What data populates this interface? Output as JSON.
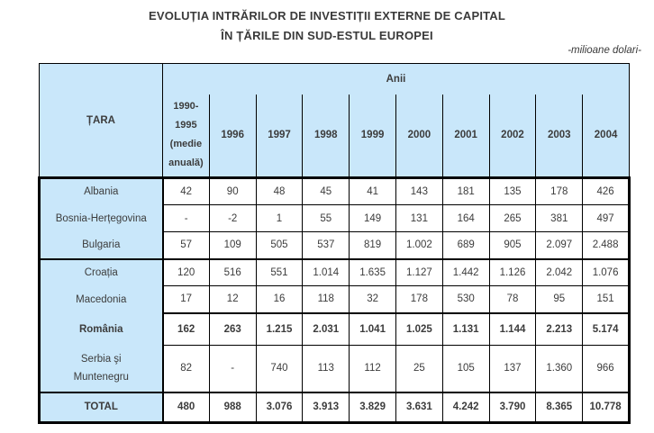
{
  "title": {
    "line1": "EVOLUȚIA INTRĂRILOR DE INVESTIȚII EXTERNE DE CAPITAL",
    "line2": "ÎN ȚĂRILE DIN SUD-ESTUL EUROPEI",
    "unit_note": "-milioane dolari-"
  },
  "colors": {
    "header_bg": "#c9e7fa",
    "border": "#000000",
    "text": "#3c3c3c"
  },
  "table": {
    "country_header": "ȚARA",
    "years_group_header": "Anii",
    "columns": [
      "1990-\n1995\n(medie\nanuală)",
      "1996",
      "1997",
      "1998",
      "1999",
      "2000",
      "2001",
      "2002",
      "2003",
      "2004"
    ],
    "rows": [
      {
        "country": "Albania",
        "bold": false,
        "separator_top": "none",
        "total": false,
        "values": [
          "42",
          "90",
          "48",
          "45",
          "41",
          "143",
          "181",
          "135",
          "178",
          "426"
        ]
      },
      {
        "country": "Bosnia-Herțegovina",
        "bold": false,
        "separator_top": "none",
        "total": false,
        "values": [
          "-",
          "-2",
          "1",
          "55",
          "149",
          "131",
          "164",
          "265",
          "381",
          "497"
        ]
      },
      {
        "country": "Bulgaria",
        "bold": false,
        "separator_top": "none",
        "total": false,
        "values": [
          "57",
          "109",
          "505",
          "537",
          "819",
          "1.002",
          "689",
          "905",
          "2.097",
          "2.488"
        ]
      },
      {
        "country": "Croația",
        "bold": false,
        "separator_top": "full",
        "total": false,
        "values": [
          "120",
          "516",
          "551",
          "1.014",
          "1.635",
          "1.127",
          "1.442",
          "1.126",
          "2.042",
          "1.076"
        ]
      },
      {
        "country": "Macedonia",
        "bold": false,
        "separator_top": "none",
        "total": false,
        "values": [
          "17",
          "12",
          "16",
          "118",
          "32",
          "178",
          "530",
          "78",
          "95",
          "151"
        ]
      },
      {
        "country": "România",
        "bold": true,
        "separator_top": "data",
        "total": false,
        "values": [
          "162",
          "263",
          "1.215",
          "2.031",
          "1.041",
          "1.025",
          "1.131",
          "1.144",
          "2.213",
          "5.174"
        ]
      },
      {
        "country": "Serbia şi\nMuntenegru",
        "bold": false,
        "separator_top": "none",
        "total": false,
        "values": [
          "82",
          "-",
          "740",
          "113",
          "112",
          "25",
          "105",
          "137",
          "1.360",
          "966"
        ]
      },
      {
        "country": "TOTAL",
        "bold": true,
        "separator_top": "full",
        "total": true,
        "values": [
          "480",
          "988",
          "3.076",
          "3.913",
          "3.829",
          "3.631",
          "4.242",
          "3.790",
          "8.365",
          "10.778"
        ]
      }
    ]
  }
}
